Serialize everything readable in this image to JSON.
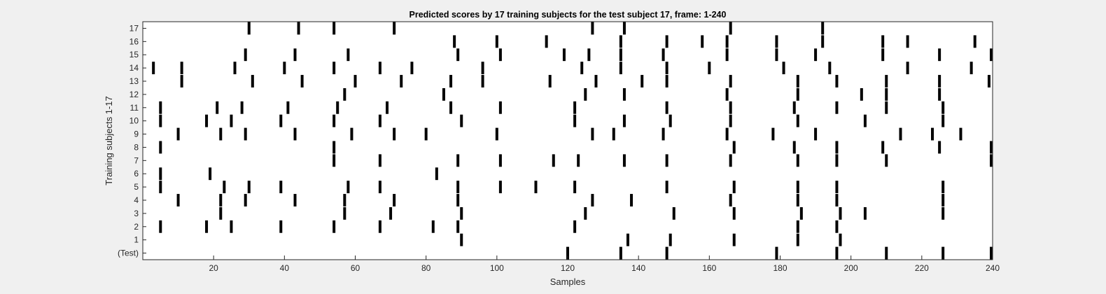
{
  "chart_data": {
    "type": "heatmap",
    "title": "Predicted scores by 17 training subjects for the test subject 17, frame: 1-240",
    "xlabel": "Samples",
    "ylabel": "Training subjects 1-17",
    "xlim": [
      0,
      240
    ],
    "xticks": [
      20,
      40,
      60,
      80,
      100,
      120,
      140,
      160,
      180,
      200,
      220,
      240
    ],
    "row_labels": [
      "(Test)",
      "1",
      "2",
      "3",
      "4",
      "5",
      "6",
      "7",
      "8",
      "9",
      "10",
      "11",
      "12",
      "13",
      "14",
      "15",
      "16",
      "17"
    ],
    "colors": {
      "background": "#f0f0f0",
      "plot": "#ffffff",
      "mark": "#000000",
      "axis": "#262626"
    },
    "grid": false,
    "rows": [
      {
        "label": "(Test)",
        "events": [
          120,
          135,
          148,
          179,
          196,
          210,
          226,
          240
        ]
      },
      {
        "label": "1",
        "events": [
          90,
          137,
          149,
          167,
          185,
          197
        ]
      },
      {
        "label": "2",
        "events": [
          5,
          18,
          25,
          39,
          54,
          67,
          82,
          89,
          122,
          185,
          196
        ]
      },
      {
        "label": "3",
        "events": [
          22,
          57,
          70,
          90,
          125,
          150,
          167,
          186,
          197,
          204,
          226
        ]
      },
      {
        "label": "4",
        "events": [
          10,
          22,
          29,
          43,
          57,
          71,
          89,
          127,
          138,
          166,
          185,
          196,
          226
        ]
      },
      {
        "label": "5",
        "events": [
          5,
          23,
          30,
          39,
          58,
          67,
          89,
          101,
          111,
          122,
          148,
          167,
          185,
          196,
          226
        ]
      },
      {
        "label": "6",
        "events": [
          5,
          19,
          83
        ]
      },
      {
        "label": "7",
        "events": [
          54,
          67,
          89,
          101,
          116,
          123,
          136,
          148,
          166,
          185,
          196,
          210,
          240
        ]
      },
      {
        "label": "8",
        "events": [
          5,
          54,
          167,
          184,
          196,
          209,
          225,
          240
        ]
      },
      {
        "label": "9",
        "events": [
          10,
          22,
          29,
          43,
          59,
          71,
          80,
          100,
          127,
          133,
          147,
          165,
          178,
          190,
          214,
          223,
          231
        ]
      },
      {
        "label": "10",
        "events": [
          5,
          18,
          25,
          39,
          54,
          67,
          90,
          122,
          136,
          149,
          166,
          185,
          204,
          226
        ]
      },
      {
        "label": "11",
        "events": [
          5,
          21,
          28,
          41,
          55,
          69,
          87,
          101,
          122,
          148,
          166,
          184,
          196,
          210,
          226
        ]
      },
      {
        "label": "12",
        "events": [
          57,
          85,
          125,
          136,
          165,
          185,
          203,
          210,
          225
        ]
      },
      {
        "label": "13",
        "events": [
          11,
          31,
          45,
          60,
          73,
          87,
          96,
          115,
          128,
          141,
          148,
          166,
          185,
          196,
          210,
          225,
          239
        ]
      },
      {
        "label": "14",
        "events": [
          3,
          11,
          26,
          40,
          54,
          67,
          76,
          96,
          124,
          135,
          148,
          160,
          181,
          194,
          216,
          234
        ]
      },
      {
        "label": "15",
        "events": [
          29,
          43,
          58,
          89,
          101,
          119,
          126,
          135,
          147,
          165,
          179,
          190,
          209,
          225,
          240
        ]
      },
      {
        "label": "16",
        "events": [
          88,
          100,
          114,
          135,
          148,
          158,
          165,
          179,
          192,
          209,
          216,
          235
        ]
      },
      {
        "label": "17",
        "events": [
          30,
          44,
          54,
          71,
          127,
          136,
          166,
          192
        ]
      }
    ]
  }
}
